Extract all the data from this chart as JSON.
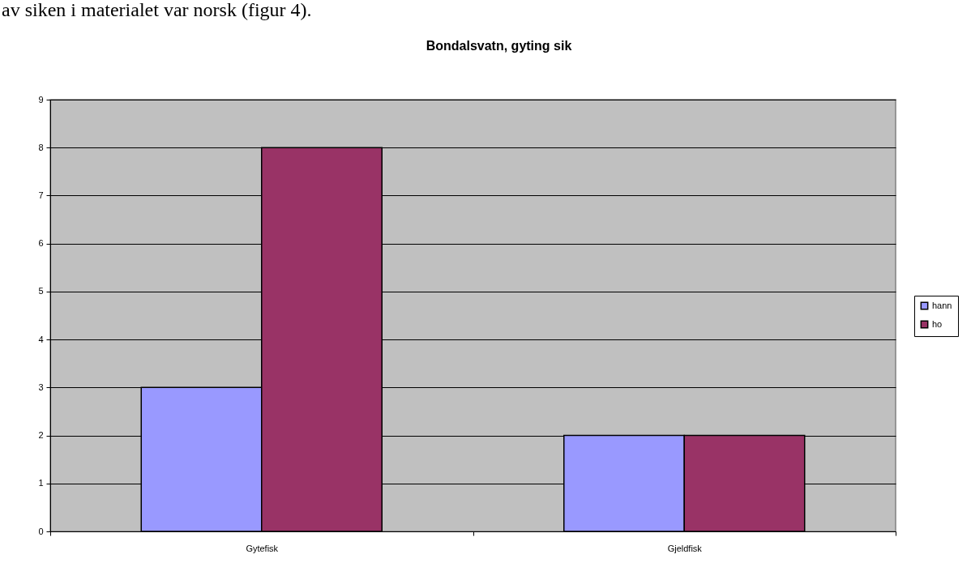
{
  "chart_data": {
    "type": "bar",
    "title": "Bondalsvatn, gyting sik",
    "categories": [
      "Gytefisk",
      "Gjeldfisk"
    ],
    "series": [
      {
        "name": "hann",
        "color": "#9999ff",
        "values": [
          3,
          2
        ]
      },
      {
        "name": "ho",
        "color": "#993366",
        "values": [
          8,
          2
        ]
      }
    ],
    "ylim": [
      0,
      9
    ],
    "yticks": [
      0,
      1,
      2,
      3,
      4,
      5,
      6,
      7,
      8,
      9
    ],
    "grid": "y",
    "legend": "right",
    "annotations": [
      "av siken i materialet var norsk (figur 4)."
    ]
  }
}
